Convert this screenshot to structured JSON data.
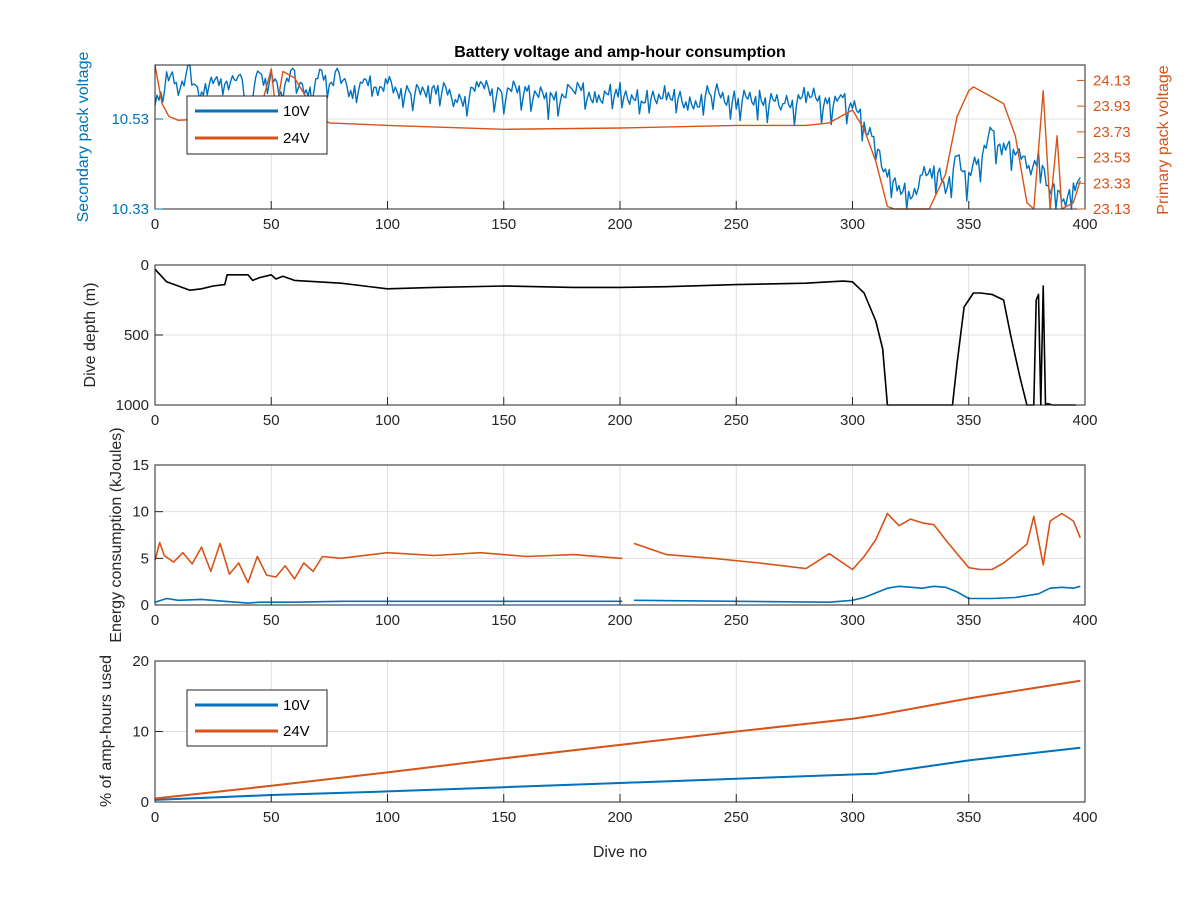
{
  "figure": {
    "title": "Battery voltage and amp-hour consumption",
    "xlabel": "Dive no"
  },
  "colors": {
    "blue": "#0072BD",
    "orange": "#D95319",
    "black": "#000000",
    "grid": "#dfdfdf",
    "axis": "#262626"
  },
  "chart_data": [
    {
      "type": "line",
      "title": "Battery voltage and amp-hour consumption",
      "xlim": [
        0,
        400
      ],
      "xticks": [
        0,
        50,
        100,
        150,
        200,
        250,
        300,
        350,
        400
      ],
      "grid": true,
      "legend": {
        "placement": "top-left",
        "entries": [
          "10V",
          "24V"
        ]
      },
      "left_axis": {
        "label": "Secondary pack voltage",
        "ticks": [
          "10.33",
          "10.53"
        ],
        "ylim": [
          10.33,
          10.65
        ]
      },
      "right_axis": {
        "label": "Primary pack voltage",
        "ticks": [
          "23.13",
          "23.33",
          "23.53",
          "23.73",
          "23.93",
          "24.13"
        ],
        "ylim": [
          23.13,
          24.25
        ]
      },
      "series": [
        {
          "name": "10V",
          "axis": "left",
          "x": [
            0,
            5,
            10,
            15,
            20,
            25,
            30,
            35,
            40,
            45,
            50,
            55,
            60,
            65,
            70,
            75,
            80,
            85,
            90,
            95,
            100,
            110,
            120,
            130,
            140,
            150,
            160,
            170,
            180,
            190,
            200,
            210,
            220,
            230,
            240,
            250,
            260,
            270,
            280,
            290,
            295,
            300,
            305,
            310,
            315,
            320,
            325,
            330,
            335,
            340,
            345,
            350,
            355,
            360,
            365,
            370,
            375,
            380,
            385,
            390,
            395,
            398
          ],
          "y": [
            10.55,
            10.63,
            10.6,
            10.64,
            10.58,
            10.63,
            10.6,
            10.64,
            10.57,
            10.63,
            10.62,
            10.59,
            10.64,
            10.58,
            10.63,
            10.61,
            10.64,
            10.58,
            10.62,
            10.6,
            10.61,
            10.58,
            10.61,
            10.57,
            10.6,
            10.59,
            10.6,
            10.57,
            10.6,
            10.58,
            10.59,
            10.57,
            10.59,
            10.56,
            10.59,
            10.57,
            10.58,
            10.56,
            10.58,
            10.57,
            10.58,
            10.56,
            10.52,
            10.48,
            10.4,
            10.38,
            10.36,
            10.4,
            10.42,
            10.38,
            10.44,
            10.4,
            10.45,
            10.5,
            10.46,
            10.47,
            10.42,
            10.44,
            10.38,
            10.35,
            10.37,
            10.4
          ],
          "spiky": true
        },
        {
          "name": "24V",
          "axis": "right",
          "x": [
            0,
            3,
            6,
            10,
            20,
            30,
            40,
            45,
            50,
            52,
            55,
            60,
            65,
            70,
            75,
            100,
            150,
            200,
            250,
            280,
            290,
            295,
            300,
            305,
            310,
            315,
            318,
            325,
            333,
            340,
            345,
            350,
            352,
            355,
            360,
            365,
            370,
            375,
            378,
            382,
            385,
            388,
            390,
            395,
            398
          ],
          "y": [
            24.25,
            23.95,
            23.85,
            23.82,
            23.83,
            23.85,
            23.95,
            23.88,
            24.22,
            23.88,
            24.2,
            24.15,
            24.0,
            23.85,
            23.8,
            23.78,
            23.75,
            23.76,
            23.78,
            23.78,
            23.8,
            23.85,
            23.9,
            23.75,
            23.5,
            23.15,
            23.13,
            23.13,
            23.13,
            23.4,
            23.85,
            24.05,
            24.08,
            24.05,
            24.0,
            23.95,
            23.7,
            23.18,
            23.13,
            24.05,
            23.13,
            23.7,
            23.13,
            23.18,
            23.35
          ]
        }
      ]
    },
    {
      "type": "line",
      "ylabel": "Dive depth (m)",
      "xlim": [
        0,
        400
      ],
      "ylim": [
        0,
        1000
      ],
      "reversed_y": true,
      "xticks": [
        0,
        50,
        100,
        150,
        200,
        250,
        300,
        350,
        400
      ],
      "yticks": [
        0,
        500,
        1000
      ],
      "grid": true,
      "series": [
        {
          "x": [
            0,
            5,
            10,
            15,
            20,
            25,
            30,
            31,
            40,
            42,
            45,
            50,
            52,
            55,
            60,
            70,
            80,
            90,
            100,
            120,
            150,
            180,
            200,
            220,
            250,
            280,
            290,
            296,
            300,
            305,
            310,
            313,
            315,
            320,
            330,
            340,
            343,
            345,
            348,
            352,
            355,
            360,
            365,
            368,
            372,
            375,
            378,
            379,
            380,
            381,
            382,
            383,
            384,
            386,
            390,
            396
          ],
          "y": [
            30,
            120,
            150,
            180,
            170,
            150,
            140,
            70,
            70,
            110,
            90,
            70,
            100,
            80,
            110,
            120,
            130,
            150,
            170,
            160,
            150,
            160,
            160,
            155,
            140,
            130,
            120,
            115,
            120,
            200,
            400,
            600,
            1000,
            1000,
            1000,
            1000,
            1000,
            700,
            300,
            200,
            200,
            210,
            250,
            500,
            800,
            1000,
            1000,
            250,
            210,
            1000,
            150,
            1000,
            990,
            1000,
            1000,
            1000
          ]
        }
      ]
    },
    {
      "type": "line",
      "ylabel": "Energy consumption (kJoules)",
      "xlim": [
        0,
        400
      ],
      "ylim": [
        0,
        15
      ],
      "xticks": [
        0,
        50,
        100,
        150,
        200,
        250,
        300,
        350,
        400
      ],
      "yticks": [
        0,
        5,
        10,
        15
      ],
      "grid": true,
      "series": [
        {
          "x": [
            0,
            2,
            4,
            8,
            12,
            16,
            20,
            24,
            28,
            32,
            36,
            40,
            44,
            48,
            52,
            56,
            60,
            64,
            68,
            72,
            80,
            100,
            120,
            140,
            160,
            180,
            200,
            201,
            null,
            206,
            220,
            240,
            260,
            280,
            290,
            300,
            305,
            310,
            315,
            320,
            325,
            330,
            335,
            340,
            345,
            350,
            355,
            360,
            365,
            370,
            375,
            378,
            382,
            385,
            390,
            395,
            398
          ],
          "y": [
            4.8,
            6.7,
            5.3,
            4.6,
            5.6,
            4.4,
            6.2,
            3.6,
            6.6,
            3.3,
            4.5,
            2.4,
            5.2,
            3.2,
            3.0,
            4.2,
            2.8,
            4.5,
            3.6,
            5.2,
            5.0,
            5.6,
            5.3,
            5.6,
            5.2,
            5.4,
            5.0,
            5.0,
            null,
            6.6,
            5.4,
            5.0,
            4.5,
            3.9,
            5.5,
            3.8,
            5.2,
            7.0,
            9.8,
            8.5,
            9.2,
            8.8,
            8.6,
            7.0,
            5.5,
            4.0,
            3.8,
            3.8,
            4.5,
            5.5,
            6.5,
            9.5,
            4.3,
            9.0,
            9.8,
            9.0,
            7.2
          ],
          "color": "orange"
        },
        {
          "x": [
            0,
            5,
            10,
            20,
            30,
            35,
            40,
            45,
            50,
            60,
            80,
            100,
            150,
            200,
            201,
            null,
            206,
            250,
            290,
            300,
            305,
            310,
            315,
            320,
            330,
            335,
            340,
            345,
            350,
            360,
            370,
            380,
            385,
            390,
            395,
            398
          ],
          "y": [
            0.3,
            0.7,
            0.5,
            0.6,
            0.4,
            0.3,
            0.2,
            0.3,
            0.3,
            0.3,
            0.4,
            0.4,
            0.4,
            0.4,
            0.4,
            null,
            0.5,
            0.4,
            0.3,
            0.5,
            0.8,
            1.3,
            1.8,
            2.0,
            1.8,
            2.0,
            1.9,
            1.4,
            0.7,
            0.7,
            0.8,
            1.2,
            1.8,
            1.9,
            1.8,
            2.0
          ],
          "color": "blue"
        }
      ]
    },
    {
      "type": "line",
      "ylabel": "% of amp-hours used",
      "xlim": [
        0,
        400
      ],
      "ylim": [
        0,
        20
      ],
      "xticks": [
        0,
        50,
        100,
        150,
        200,
        250,
        300,
        350,
        400
      ],
      "yticks": [
        0,
        10,
        20
      ],
      "grid": true,
      "legend": {
        "placement": "top-left",
        "entries": [
          "10V",
          "24V"
        ]
      },
      "series": [
        {
          "name": "10V",
          "x": [
            0,
            50,
            100,
            150,
            200,
            250,
            300,
            310,
            350,
            398
          ],
          "y": [
            0.3,
            1.0,
            1.5,
            2.1,
            2.7,
            3.3,
            3.9,
            4.0,
            5.9,
            7.7
          ]
        },
        {
          "name": "24V",
          "x": [
            0,
            50,
            100,
            150,
            200,
            250,
            300,
            310,
            350,
            398
          ],
          "y": [
            0.5,
            2.3,
            4.2,
            6.2,
            8.1,
            10.0,
            11.8,
            12.3,
            14.7,
            17.2
          ]
        }
      ]
    }
  ]
}
